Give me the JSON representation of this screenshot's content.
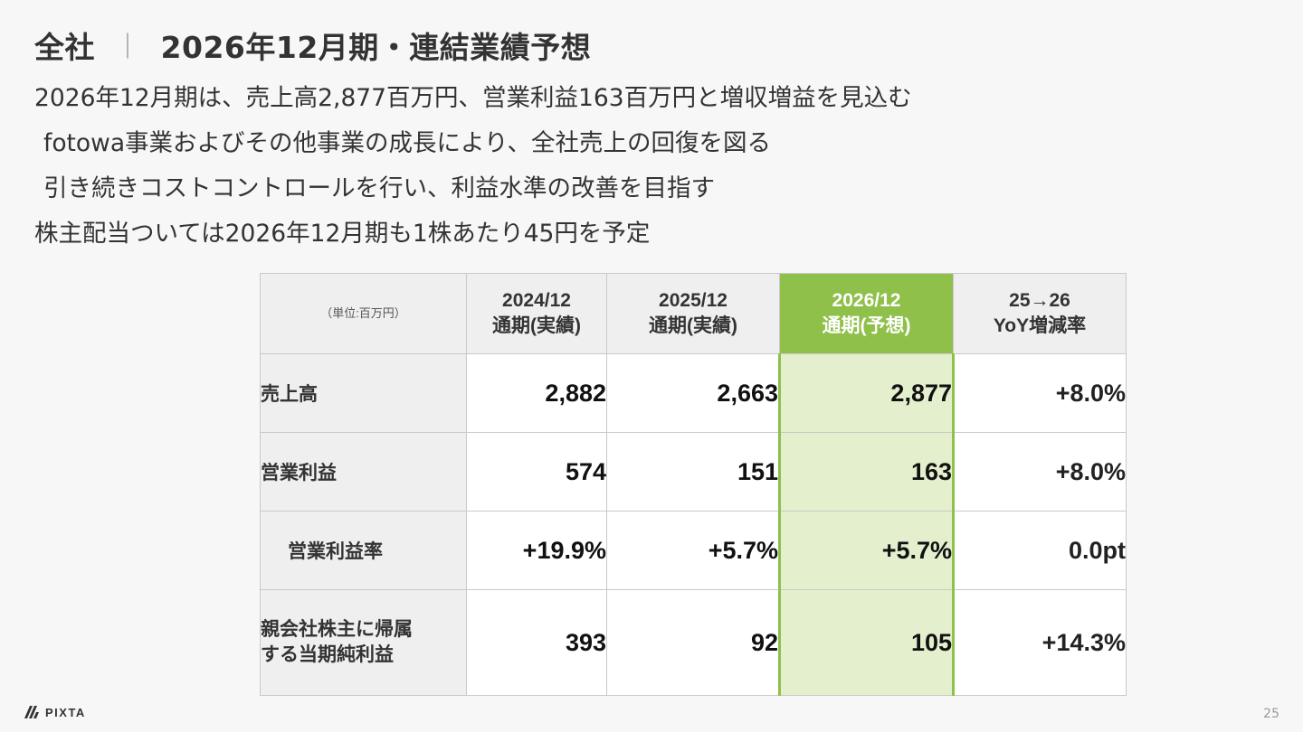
{
  "slide": {
    "title_section": "全社",
    "title_separator": "｜",
    "title_main": "2026年12月期・連結業績予想",
    "bullets": [
      "2026年12月期は、売上高2,877百万円、営業利益163百万円と増収増益を見込む",
      "fotowa事業およびその他事業の成長により、全社売上の回復を図る",
      "引き続きコストコントロールを行い、利益水準の改善を目指す",
      "株主配当ついては2026年12月期も1株あたり45円を予定"
    ],
    "page_number": "25",
    "logo_text": "PIXTA"
  },
  "table": {
    "unit_label": "（単位:百万円）",
    "headers": [
      {
        "line1": "2024/12",
        "line2": "通期(実績)"
      },
      {
        "line1": "2025/12",
        "line2": "通期(実績)"
      },
      {
        "line1": "2026/12",
        "line2": "通期(予想)"
      },
      {
        "line1": "25→26",
        "line2": "YoY増減率"
      }
    ],
    "rows": [
      {
        "label": "売上高",
        "values": [
          "2,882",
          "2,663",
          "2,877",
          "+8.0%"
        ]
      },
      {
        "label": "営業利益",
        "values": [
          "574",
          "151",
          "163",
          "+8.0%"
        ]
      },
      {
        "label": "営業利益率",
        "values": [
          "+19.9%",
          "+5.7%",
          "+5.7%",
          "0.0pt"
        ]
      },
      {
        "label_line1": "親会社株主に帰属",
        "label_line2": "する当期純利益",
        "values": [
          "393",
          "92",
          "105",
          "+14.3%"
        ]
      }
    ]
  },
  "colors": {
    "accent_green": "#8fc04a",
    "highlight_cell": "#e4efce",
    "header_gray": "#efefef"
  }
}
